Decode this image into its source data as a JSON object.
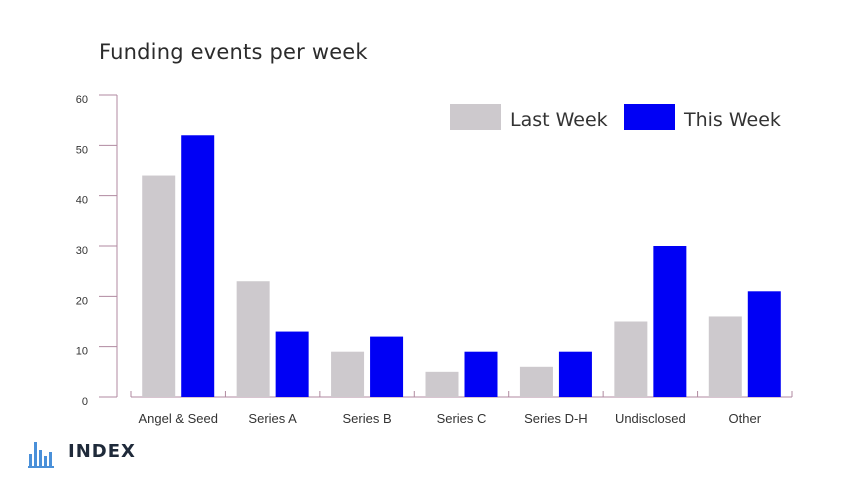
{
  "colors": {
    "last_week": "#cdc9cd",
    "this_week": "#0000f5",
    "axis": "#b08aa0"
  },
  "logo": {
    "text": "INDEX",
    "icon": "bar-chart-logo-icon",
    "color": "#4a90d9"
  },
  "chart_data": {
    "type": "bar",
    "title": "Funding events per week",
    "categories": [
      "Angel & Seed",
      "Series A",
      "Series B",
      "Series C",
      "Series D-H",
      "Undisclosed",
      "Other"
    ],
    "series": [
      {
        "name": "Last Week",
        "values": [
          44,
          23,
          9,
          5,
          6,
          15,
          16
        ]
      },
      {
        "name": "This Week",
        "values": [
          52,
          13,
          12,
          9,
          9,
          30,
          21
        ]
      }
    ],
    "yticks": [
      0,
      10,
      20,
      30,
      40,
      50,
      60
    ],
    "ylim": [
      0,
      60
    ],
    "xlabel": "",
    "ylabel": "",
    "grid": false,
    "legend": "top-right"
  }
}
